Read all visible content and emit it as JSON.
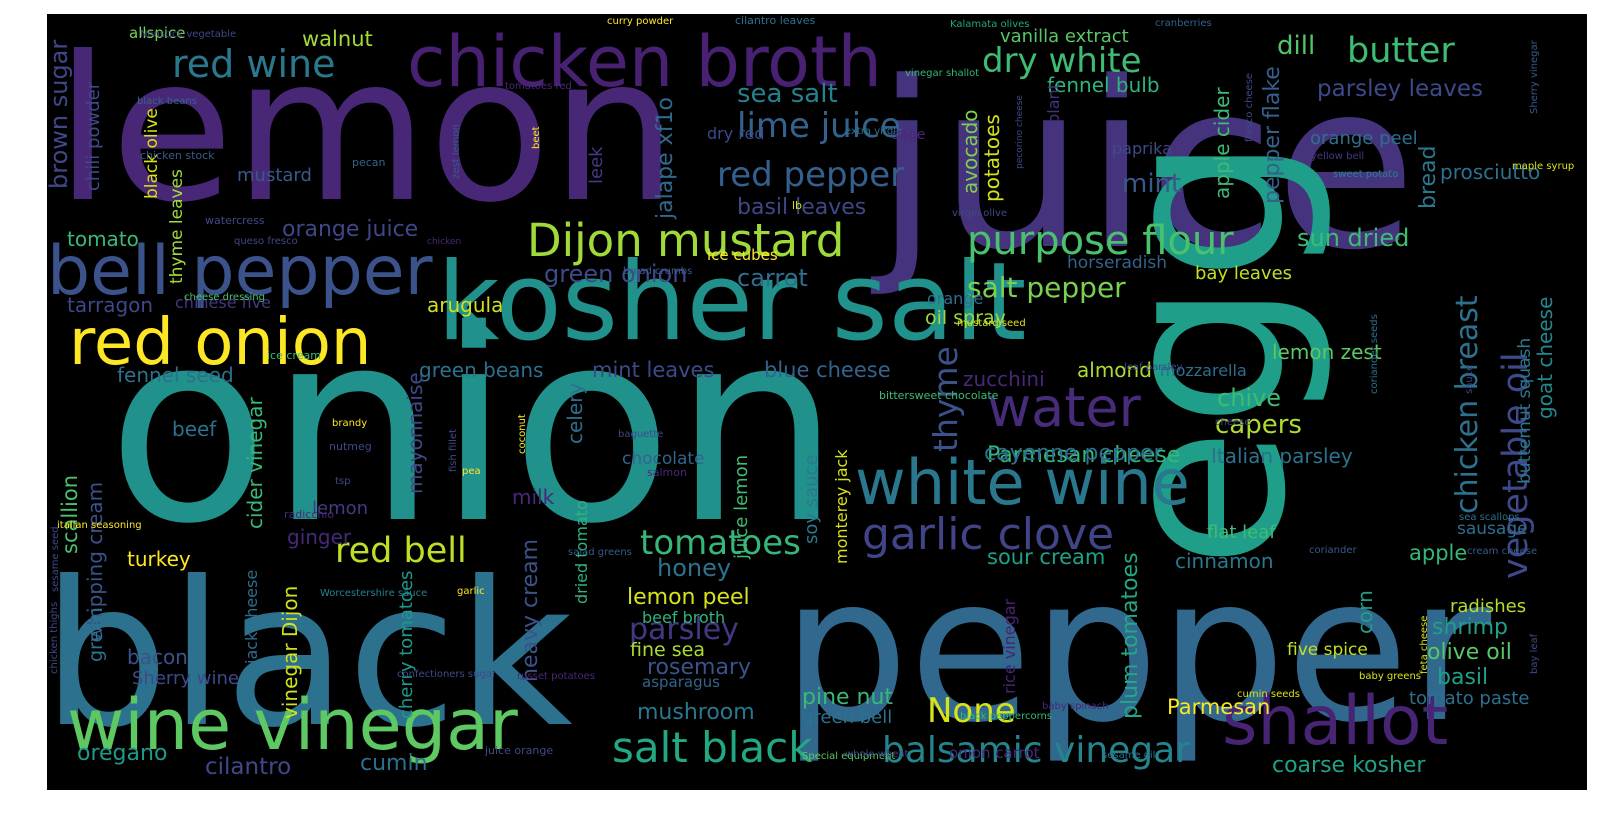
{
  "words": [
    {
      "text": "lemon",
      "color": "#482777"
    },
    {
      "text": "juice",
      "color": "#46337e"
    },
    {
      "text": "onion",
      "color": "#21918c"
    },
    {
      "text": "black",
      "color": "#2c728e"
    },
    {
      "text": "pepper",
      "color": "#31688e"
    },
    {
      "text": "kosher salt",
      "color": "#21918c"
    },
    {
      "text": "egg",
      "color": "#1f9e89"
    },
    {
      "text": "chicken broth",
      "color": "#482173"
    },
    {
      "text": "bell pepper",
      "color": "#3b528b"
    },
    {
      "text": "red onion",
      "color": "#fde725"
    },
    {
      "text": "wine vinegar",
      "color": "#5ec962"
    },
    {
      "text": "white wine",
      "color": "#2a788e"
    },
    {
      "text": "garlic clove",
      "color": "#414487"
    },
    {
      "text": "shallot",
      "color": "#482475"
    },
    {
      "text": "water",
      "color": "#472c7a"
    },
    {
      "text": "vegetable oil",
      "color": "#3e4989"
    },
    {
      "text": "Dijon mustard",
      "color": "#a0da39"
    },
    {
      "text": "purpose flour",
      "color": "#4ac16d"
    },
    {
      "text": "salt black",
      "color": "#22a884"
    },
    {
      "text": "balsamic vinegar",
      "color": "#25858e"
    },
    {
      "text": "red wine",
      "color": "#2a788e"
    },
    {
      "text": "dry white",
      "color": "#3fbc73"
    },
    {
      "text": "butter",
      "color": "#3fbc73"
    },
    {
      "text": "lime juice",
      "color": "#33638d"
    },
    {
      "text": "red pepper",
      "color": "#355f8d"
    },
    {
      "text": "red bell",
      "color": "#bddf26"
    },
    {
      "text": "tomatoes",
      "color": "#35b779"
    },
    {
      "text": "chicken breast",
      "color": "#2c728e"
    },
    {
      "text": "thyme",
      "color": "#3b528b"
    },
    {
      "text": "parsley",
      "color": "#453781"
    },
    {
      "text": "None",
      "color": "#d8e219"
    },
    {
      "text": "salt pepper",
      "color": "#7ad151"
    },
    {
      "text": "Parmesan cheese",
      "color": "#35b779"
    },
    {
      "text": "dill",
      "color": "#52c569"
    },
    {
      "text": "sea salt",
      "color": "#26818e"
    },
    {
      "text": "parsley leaves",
      "color": "#3e4989"
    },
    {
      "text": "fennel bulb",
      "color": "#2fb47c"
    },
    {
      "text": "basil leaves",
      "color": "#3f4788"
    },
    {
      "text": "mint",
      "color": "#38598c"
    },
    {
      "text": "goat cheese",
      "color": "#24878e"
    },
    {
      "text": "orange juice",
      "color": "#3f4788"
    },
    {
      "text": "green onion",
      "color": "#3e4a89"
    },
    {
      "text": "carrot",
      "color": "#2e6e8e"
    },
    {
      "text": "sun dried",
      "color": "#3dbc74"
    },
    {
      "text": "bay leaves",
      "color": "#c2df23"
    },
    {
      "text": "tomato",
      "color": "#3aba76"
    },
    {
      "text": "brown sugar",
      "color": "#3f4788"
    },
    {
      "text": "mustard",
      "color": "#38598c"
    },
    {
      "text": "tarragon",
      "color": "#3f4788"
    },
    {
      "text": "arugula",
      "color": "#d0e11c"
    },
    {
      "text": "oil spray",
      "color": "#9dd93b"
    },
    {
      "text": "fennel seed",
      "color": "#2d708e"
    },
    {
      "text": "green beans",
      "color": "#2d708e"
    },
    {
      "text": "mint leaves",
      "color": "#3e4989"
    },
    {
      "text": "blue cheese",
      "color": "#32648e"
    },
    {
      "text": "zucchini",
      "color": "#482878"
    },
    {
      "text": "almond",
      "color": "#addc30"
    },
    {
      "text": "mozzarella",
      "color": "#2e6e8e"
    },
    {
      "text": "chive",
      "color": "#3dbc74"
    },
    {
      "text": "capers",
      "color": "#addc30"
    },
    {
      "text": "Italian parsley",
      "color": "#2c728e"
    },
    {
      "text": "cayenne pepper",
      "color": "#2e6e8e"
    },
    {
      "text": "lemon zest",
      "color": "#5ec962"
    },
    {
      "text": "cilantro",
      "color": "#3e4989"
    },
    {
      "text": "cumin",
      "color": "#2d708e"
    },
    {
      "text": "oregano",
      "color": "#1f9a8a"
    },
    {
      "text": "coarse kosher",
      "color": "#1fa188"
    },
    {
      "text": "sour cream",
      "color": "#1fa188"
    },
    {
      "text": "cinnamon",
      "color": "#2a788e"
    },
    {
      "text": "honey",
      "color": "#2c728e"
    },
    {
      "text": "rosemary",
      "color": "#3b528b"
    },
    {
      "text": "lemon peel",
      "color": "#d8e219"
    },
    {
      "text": "mushroom",
      "color": "#2a788e"
    },
    {
      "text": "pine nut",
      "color": "#38b977"
    },
    {
      "text": "Parmesan",
      "color": "#fde725"
    },
    {
      "text": "olive oil",
      "color": "#58c765"
    },
    {
      "text": "basil",
      "color": "#1fa088"
    },
    {
      "text": "shrimp",
      "color": "#1fa088"
    },
    {
      "text": "radishes",
      "color": "#b5de2b"
    },
    {
      "text": "bacon",
      "color": "#3b528b"
    },
    {
      "text": "turkey",
      "color": "#fde725"
    },
    {
      "text": "ginger",
      "color": "#482878"
    },
    {
      "text": "milk",
      "color": "#482878"
    },
    {
      "text": "lemon",
      "color": "#443983"
    },
    {
      "text": "beef",
      "color": "#2c728e"
    },
    {
      "text": "walnut",
      "color": "#a2da37"
    },
    {
      "text": "vanilla extract",
      "color": "#58c765"
    },
    {
      "text": "prosciutto",
      "color": "#2c728e"
    },
    {
      "text": "tomato paste",
      "color": "#2d708e"
    },
    {
      "text": "green bell",
      "color": "#2c728e"
    },
    {
      "text": "fine sea",
      "color": "#addc30"
    },
    {
      "text": "asparagus",
      "color": "#33638d"
    },
    {
      "text": "five spice",
      "color": "#c2df23"
    },
    {
      "text": "apple",
      "color": "#35b779"
    },
    {
      "text": "sausage",
      "color": "#2e6e8e"
    },
    {
      "text": "corn",
      "color": "#1f9e89"
    },
    {
      "text": "bread",
      "color": "#2a788e"
    },
    {
      "text": "avocado",
      "color": "#7ad151"
    },
    {
      "text": "potatoes",
      "color": "#d2e21b"
    },
    {
      "text": "apple cider",
      "color": "#3dbc74"
    },
    {
      "text": "pepper flake",
      "color": "#355f8d"
    },
    {
      "text": "orange peel",
      "color": "#2d708e"
    },
    {
      "text": "leek",
      "color": "#443983"
    },
    {
      "text": "chili powder",
      "color": "#3e4989"
    },
    {
      "text": "scallion",
      "color": "#4ac16d"
    },
    {
      "text": "whipping cream",
      "color": "#3b528b"
    },
    {
      "text": "cider vinegar",
      "color": "#38b977"
    },
    {
      "text": "mayonnaise",
      "color": "#3e4989"
    },
    {
      "text": "celery",
      "color": "#2e6e8e"
    },
    {
      "text": "heavy cream",
      "color": "#3b528b"
    },
    {
      "text": "juice lemon",
      "color": "#3dbc74"
    },
    {
      "text": "soy sauce",
      "color": "#2a788e"
    },
    {
      "text": "monterey jack",
      "color": "#d8e219"
    },
    {
      "text": "dried tomato",
      "color": "#2fb47c"
    },
    {
      "text": "jalape xf1o",
      "color": "#31688e"
    },
    {
      "text": "cherry tomatoes",
      "color": "#1f9a8a"
    },
    {
      "text": "plum tomatoes",
      "color": "#22a884"
    },
    {
      "text": "rice vinegar",
      "color": "#482475"
    },
    {
      "text": "vinegar Dijon",
      "color": "#d0e11c"
    },
    {
      "text": "green",
      "color": "#2c728e"
    },
    {
      "text": "jack cheese",
      "color": "#2e6e8e"
    },
    {
      "text": "butternut squash",
      "color": "#2a788e"
    },
    {
      "text": "thyme leaves",
      "color": "#a0da39"
    },
    {
      "text": "black olive",
      "color": "#d8e219"
    },
    {
      "text": "Sherry wine",
      "color": "#3e4989"
    },
    {
      "text": "beef broth",
      "color": "#2fb47c"
    },
    {
      "text": "chocolate",
      "color": "#32648e"
    },
    {
      "text": "orange",
      "color": "#2e6e8e"
    },
    {
      "text": "paprika",
      "color": "#3e4989"
    },
    {
      "text": "dry red",
      "color": "#3e4989"
    },
    {
      "text": "ice cubes",
      "color": "#fde725"
    },
    {
      "text": "horseradish",
      "color": "#33638d"
    },
    {
      "text": "chinese five",
      "color": "#453781"
    },
    {
      "text": "flat leaf",
      "color": "#3fbc73"
    },
    {
      "text": "eggplant",
      "color": "#46337e"
    },
    {
      "text": "allspice",
      "color": "#7ad151"
    },
    {
      "text": "Nonstick vegetable",
      "color": "#3f4788"
    },
    {
      "text": "black beans",
      "color": "#33638d"
    },
    {
      "text": "tomatoes red",
      "color": "#482878"
    },
    {
      "text": "chicken stock",
      "color": "#38598c"
    },
    {
      "text": "curry powder",
      "color": "#fde725"
    },
    {
      "text": "cilantro leaves",
      "color": "#2c728e"
    },
    {
      "text": "Kalamata olives",
      "color": "#22a884"
    },
    {
      "text": "cranberries",
      "color": "#33638d"
    },
    {
      "text": "Sherry vinegar",
      "color": "#38598c"
    },
    {
      "text": "vinegar shallot",
      "color": "#35b779"
    },
    {
      "text": "extra virgin",
      "color": "#2c728e"
    },
    {
      "text": "sage",
      "color": "#482878"
    },
    {
      "text": "beet",
      "color": "#fde725"
    },
    {
      "text": "zest lemon",
      "color": "#38598c"
    },
    {
      "text": "pecorino cheese",
      "color": "#3e4989"
    },
    {
      "text": "fresco cheese",
      "color": "#3e4989"
    },
    {
      "text": "yellow bell",
      "color": "#453781"
    },
    {
      "text": "sweet potato",
      "color": "#26818e"
    },
    {
      "text": "maple syrup",
      "color": "#d8e219"
    },
    {
      "text": "pecan",
      "color": "#33638d"
    },
    {
      "text": "lb",
      "color": "#d8e219"
    },
    {
      "text": "virgin olive",
      "color": "#3e4989"
    },
    {
      "text": "watercress",
      "color": "#3e4989"
    },
    {
      "text": "queso fresco",
      "color": "#3e4989"
    },
    {
      "text": "chicken",
      "color": "#482878"
    },
    {
      "text": "bread crumbs",
      "color": "#38598c"
    },
    {
      "text": "cheese dressing",
      "color": "#4ac16d"
    },
    {
      "text": "mustard seed",
      "color": "#d8e219"
    },
    {
      "text": "ice cream",
      "color": "#3fbc73"
    },
    {
      "text": "leaf parsley",
      "color": "#3e4989"
    },
    {
      "text": "coriander seeds",
      "color": "#2c728e"
    },
    {
      "text": "sauce",
      "color": "#3e4989"
    },
    {
      "text": "bittersweet chocolate",
      "color": "#3dbc74"
    },
    {
      "text": "brandy",
      "color": "#fde725"
    },
    {
      "text": "nutmeg",
      "color": "#3e4989"
    },
    {
      "text": "coconut",
      "color": "#fde725"
    },
    {
      "text": "fish fillet",
      "color": "#3e4989"
    },
    {
      "text": "baguette",
      "color": "#3e4989"
    },
    {
      "text": "salmon",
      "color": "#482878"
    },
    {
      "text": "tsp",
      "color": "#3e4989"
    },
    {
      "text": "pea",
      "color": "#fde725"
    },
    {
      "text": "cheese",
      "color": "#3e4989"
    },
    {
      "text": "sea scallops",
      "color": "#2c728e"
    },
    {
      "text": "coriander",
      "color": "#38598c"
    },
    {
      "text": "cream cheese",
      "color": "#38598c"
    },
    {
      "text": "radicchio",
      "color": "#482878"
    },
    {
      "text": "italian seasoning",
      "color": "#fde725"
    },
    {
      "text": "salad greens",
      "color": "#38598c"
    },
    {
      "text": "sesame seed",
      "color": "#3e4989"
    },
    {
      "text": "Worcestershire sauce",
      "color": "#26818e"
    },
    {
      "text": "garlic",
      "color": "#fde725"
    },
    {
      "text": "chicken thighs",
      "color": "#3e4989"
    },
    {
      "text": "confectioners sugar",
      "color": "#3e4989"
    },
    {
      "text": "russet potatoes",
      "color": "#482878"
    },
    {
      "text": "cumin seeds",
      "color": "#d8e219"
    },
    {
      "text": "baby greens",
      "color": "#d8e219"
    },
    {
      "text": "feta cheese",
      "color": "#d8e219"
    },
    {
      "text": "bay leaf",
      "color": "#3e4989"
    },
    {
      "text": "black peppercorns",
      "color": "#38b977"
    },
    {
      "text": "baby spinach",
      "color": "#482878"
    },
    {
      "text": "juice orange",
      "color": "#3e4989"
    },
    {
      "text": "Special equipment",
      "color": "#5ec962"
    },
    {
      "text": "whole wheat",
      "color": "#3e4989"
    },
    {
      "text": "onion carrot",
      "color": "#482878"
    },
    {
      "text": "sesame oil",
      "color": "#2c728e"
    },
    {
      "text": "cucumber",
      "color": "#2c728e"
    }
  ]
}
